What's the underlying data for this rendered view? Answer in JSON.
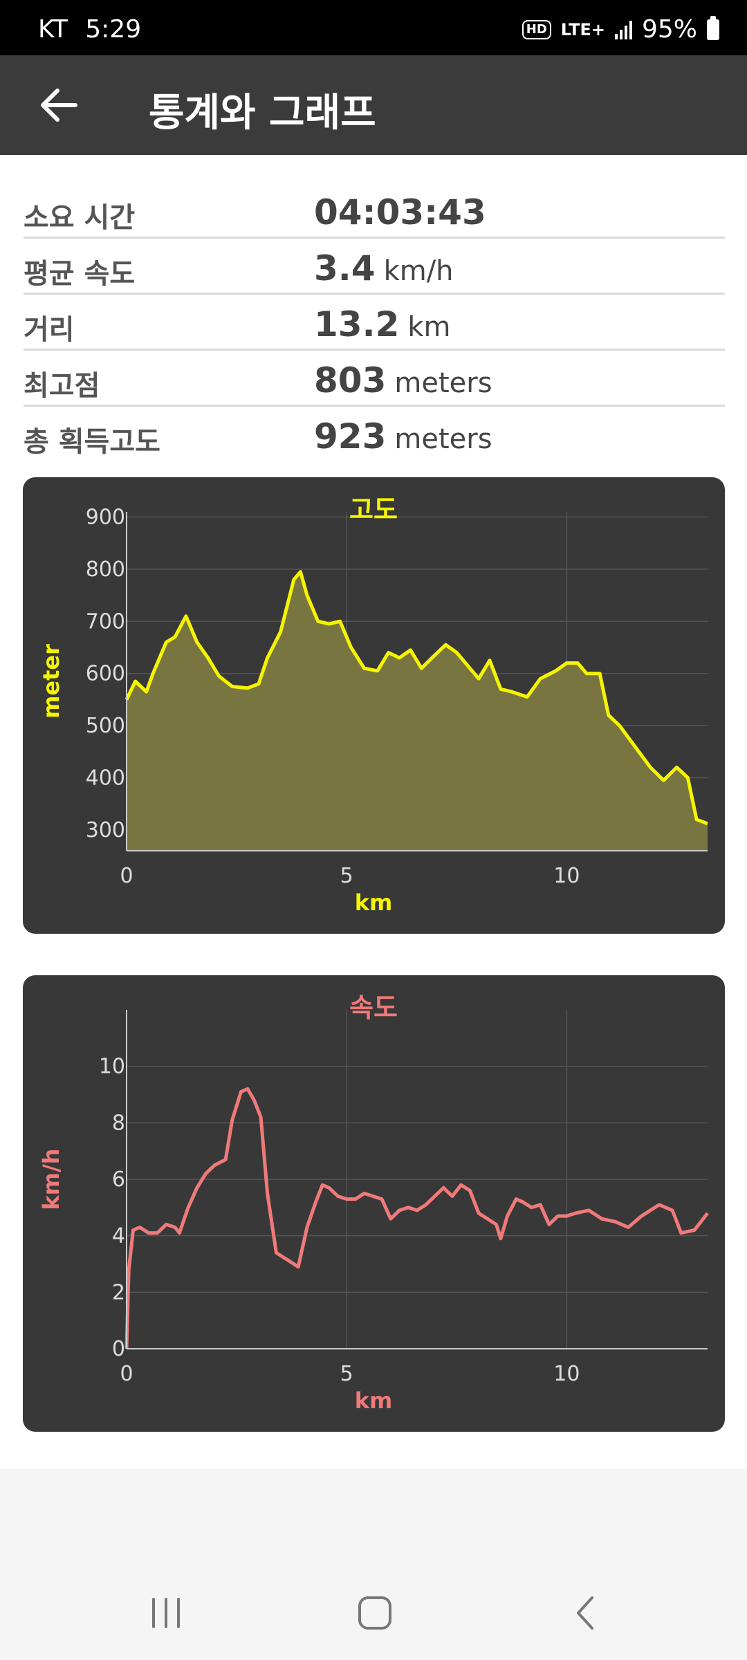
{
  "status_bar": {
    "carrier": "KT",
    "time": "5:29",
    "hd": "HD",
    "network": "LTE+",
    "battery": "95%"
  },
  "app_bar": {
    "title": "통계와 그래프"
  },
  "stats": [
    {
      "label": "소요 시간",
      "value": "04:03:43",
      "unit": ""
    },
    {
      "label": "평균 속도",
      "value": "3.4",
      "unit": "km/h"
    },
    {
      "label": "거리",
      "value": "13.2",
      "unit": "km"
    },
    {
      "label": "최고점",
      "value": "803",
      "unit": "meters"
    },
    {
      "label": "총 획득고도",
      "value": "923",
      "unit": "meters"
    }
  ],
  "colors": {
    "elevation": "#f5f500",
    "elevation_fill": "#787541",
    "speed": "#f07a7a",
    "card_bg": "#383838"
  },
  "chart_data": [
    {
      "type": "area",
      "title": "고도",
      "xlabel": "km",
      "ylabel": "meter",
      "xlim": [
        0,
        13.2
      ],
      "ylim": [
        260,
        910
      ],
      "x_ticks": [
        0,
        5,
        10
      ],
      "y_ticks": [
        300,
        400,
        500,
        600,
        700,
        800,
        900
      ],
      "grid": true,
      "series": [
        {
          "x": [
            0,
            0.2,
            0.45,
            0.6,
            0.9,
            1.1,
            1.35,
            1.45,
            1.6,
            1.85,
            2.1,
            2.4,
            2.75,
            3.0,
            3.2,
            3.5,
            3.8,
            3.95,
            4.1,
            4.35,
            4.6,
            4.85,
            5.1,
            5.4,
            5.7,
            5.95,
            6.2,
            6.45,
            6.7,
            7.0,
            7.25,
            7.5,
            7.75,
            8.0,
            8.25,
            8.5,
            8.75,
            9.1,
            9.4,
            9.75,
            10.0,
            10.25,
            10.45,
            10.75,
            10.95,
            11.2,
            11.55,
            11.9,
            12.2,
            12.5,
            12.75,
            12.95,
            13.2
          ],
          "y": [
            550,
            585,
            565,
            600,
            660,
            670,
            710,
            690,
            660,
            630,
            595,
            575,
            572,
            580,
            630,
            680,
            780,
            795,
            750,
            700,
            695,
            700,
            650,
            610,
            605,
            640,
            630,
            645,
            610,
            635,
            655,
            640,
            615,
            590,
            625,
            570,
            565,
            555,
            590,
            605,
            620,
            620,
            600,
            600,
            520,
            500,
            460,
            420,
            395,
            420,
            400,
            320,
            312
          ]
        }
      ]
    },
    {
      "type": "line",
      "title": "속도",
      "xlabel": "km",
      "ylabel": "km/h",
      "xlim": [
        0,
        13.2
      ],
      "ylim": [
        0,
        12
      ],
      "x_ticks": [
        0,
        5,
        10
      ],
      "y_ticks": [
        0,
        2,
        4,
        6,
        8,
        10
      ],
      "grid": true,
      "series": [
        {
          "x": [
            0,
            0.05,
            0.15,
            0.3,
            0.5,
            0.7,
            0.9,
            1.1,
            1.2,
            1.4,
            1.6,
            1.8,
            2.0,
            2.25,
            2.4,
            2.6,
            2.75,
            2.9,
            3.05,
            3.2,
            3.4,
            3.7,
            3.9,
            4.1,
            4.3,
            4.45,
            4.6,
            4.8,
            5.0,
            5.2,
            5.4,
            5.6,
            5.8,
            6.0,
            6.2,
            6.4,
            6.6,
            6.8,
            7.0,
            7.2,
            7.4,
            7.6,
            7.8,
            8.0,
            8.2,
            8.4,
            8.5,
            8.65,
            8.85,
            9.0,
            9.2,
            9.4,
            9.6,
            9.8,
            10.0,
            10.2,
            10.5,
            10.8,
            11.1,
            11.4,
            11.7,
            11.9,
            12.1,
            12.4,
            12.6,
            12.9,
            13.2
          ],
          "y": [
            0,
            2.8,
            4.2,
            4.3,
            4.1,
            4.1,
            4.4,
            4.3,
            4.1,
            5.0,
            5.7,
            6.2,
            6.5,
            6.7,
            8.1,
            9.1,
            9.2,
            8.8,
            8.2,
            5.5,
            3.4,
            3.1,
            2.9,
            4.3,
            5.2,
            5.8,
            5.7,
            5.4,
            5.3,
            5.3,
            5.5,
            5.4,
            5.3,
            4.6,
            4.9,
            5.0,
            4.9,
            5.1,
            5.4,
            5.7,
            5.4,
            5.8,
            5.6,
            4.8,
            4.6,
            4.4,
            3.9,
            4.7,
            5.3,
            5.2,
            5.0,
            5.1,
            4.4,
            4.7,
            4.7,
            4.8,
            4.9,
            4.6,
            4.5,
            4.3,
            4.7,
            4.9,
            5.1,
            4.9,
            4.1,
            4.2,
            4.8
          ]
        }
      ]
    }
  ]
}
